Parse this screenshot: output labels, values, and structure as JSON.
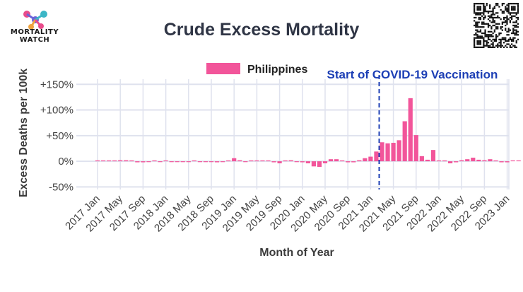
{
  "header": {
    "logo_line1": "MORTALITY",
    "logo_line2": "WATCH",
    "title": "Crude Excess Mortality"
  },
  "colors": {
    "bar": "#f2559a",
    "annotation": "#1d3fb5",
    "grid": "#dfe2ee"
  },
  "icons": {
    "logo": "molecule-logo-icon",
    "qr": "qr-code-icon"
  },
  "chart_data": {
    "type": "bar",
    "title": "Crude Excess Mortality",
    "xlabel": "Month of Year",
    "ylabel": "Excess Deaths per 100k",
    "ylim": [
      -55,
      160
    ],
    "y_ticks": [
      -50,
      0,
      50,
      100,
      150
    ],
    "y_tick_labels": [
      "-50%",
      "0%",
      "+50%",
      "+100%",
      "+150%"
    ],
    "x_tick_labels": [
      "2017 Jan",
      "2017 May",
      "2017 Sep",
      "2018 Jan",
      "2018 May",
      "2018 Sep",
      "2019 Jan",
      "2019 May",
      "2019 Sep",
      "2020 Jan",
      "2020 May",
      "2020 Sep",
      "2021 Jan",
      "2021 May",
      "2021 Sep",
      "2022 Jan",
      "2022 May",
      "2022 Sep",
      "2023 Jan"
    ],
    "grid": true,
    "legend": "top-center",
    "series": [
      {
        "name": "Philippines",
        "categories": [
          "2017 Jan",
          "2017 Feb",
          "2017 Mar",
          "2017 Apr",
          "2017 May",
          "2017 Jun",
          "2017 Jul",
          "2017 Aug",
          "2017 Sep",
          "2017 Oct",
          "2017 Nov",
          "2017 Dec",
          "2018 Jan",
          "2018 Feb",
          "2018 Mar",
          "2018 Apr",
          "2018 May",
          "2018 Jun",
          "2018 Jul",
          "2018 Aug",
          "2018 Sep",
          "2018 Oct",
          "2018 Nov",
          "2018 Dec",
          "2019 Jan",
          "2019 Feb",
          "2019 Mar",
          "2019 Apr",
          "2019 May",
          "2019 Jun",
          "2019 Jul",
          "2019 Aug",
          "2019 Sep",
          "2019 Oct",
          "2019 Nov",
          "2019 Dec",
          "2020 Jan",
          "2020 Feb",
          "2020 Mar",
          "2020 Apr",
          "2020 May",
          "2020 Jun",
          "2020 Jul",
          "2020 Aug",
          "2020 Sep",
          "2020 Oct",
          "2020 Nov",
          "2020 Dec",
          "2021 Jan",
          "2021 Feb",
          "2021 Mar",
          "2021 Apr",
          "2021 May",
          "2021 Jun",
          "2021 Jul",
          "2021 Aug",
          "2021 Sep",
          "2021 Oct",
          "2021 Nov",
          "2021 Dec",
          "2022 Jan",
          "2022 Feb",
          "2022 Mar",
          "2022 Apr",
          "2022 May",
          "2022 Jun",
          "2022 Jul",
          "2022 Aug",
          "2022 Sep",
          "2022 Oct",
          "2022 Nov",
          "2022 Dec",
          "2023 Jan",
          "2023 Feb",
          "2023 Mar"
        ],
        "values": [
          0,
          0,
          0,
          0,
          2,
          2,
          1,
          -2,
          -2,
          -1,
          1,
          -1,
          0,
          -1,
          -1,
          -1,
          -1,
          0,
          -1,
          -1,
          -1,
          -2,
          -1,
          1,
          6,
          2,
          -1,
          0,
          0,
          0,
          0,
          -2,
          -4,
          1,
          2,
          -1,
          -2,
          -4,
          -10,
          -11,
          -4,
          4,
          4,
          0,
          -2,
          -2,
          2,
          6,
          9,
          19,
          37,
          35,
          36,
          41,
          78,
          123,
          51,
          10,
          3,
          22,
          1,
          0,
          -4,
          -2,
          2,
          4,
          7,
          3,
          2,
          4,
          0,
          -2,
          -2,
          0,
          0
        ]
      }
    ],
    "annotations": [
      {
        "text": "Start of COVID-19 Vaccination",
        "x": "2021 Mar",
        "style": "dashed-vertical-line"
      }
    ]
  }
}
